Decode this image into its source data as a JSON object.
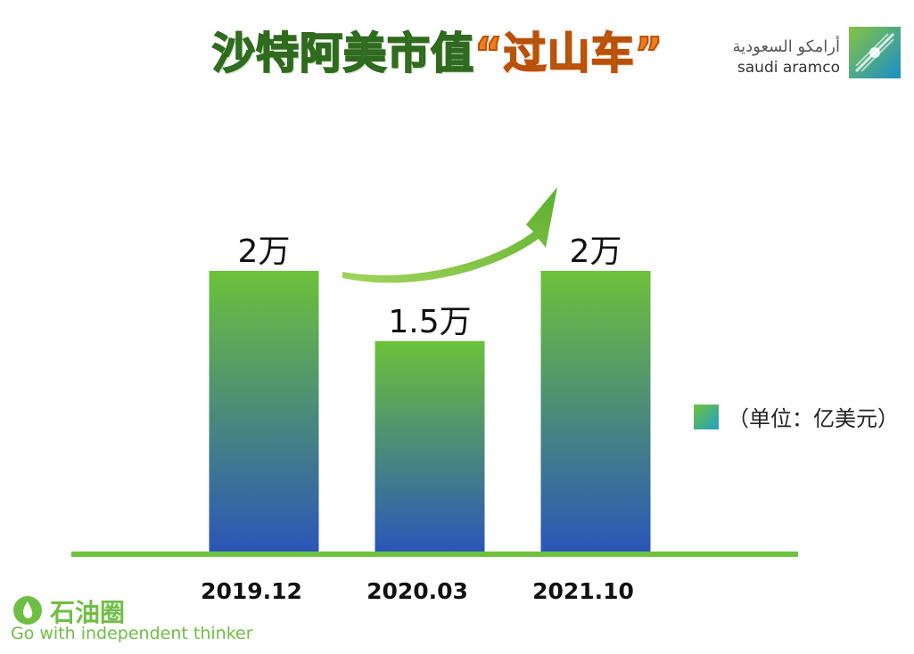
{
  "title": {
    "part1": "沙特阿美市值",
    "part2": "“过山车”"
  },
  "logo": {
    "arabic": "أرامكو السعودية",
    "english": "saudi aramco"
  },
  "legend": {
    "label": "（单位：亿美元）"
  },
  "watermark": {
    "name": "石油圈",
    "tagline": "Go with independent thinker"
  },
  "colors": {
    "bar_top": "#6cc23a",
    "bar_bottom": "#2a56b8",
    "axis": "#6ec23f",
    "arrow": "#7dc23a"
  },
  "chart_data": {
    "type": "bar",
    "title": "沙特阿美市值“过山车”",
    "categories": [
      "2019.12",
      "2020.03",
      "2021.10"
    ],
    "values": [
      20000,
      15000,
      20000
    ],
    "value_labels": [
      "2万",
      "1.5万",
      "2万"
    ],
    "unit": "（单位：亿美元）",
    "ylim": [
      0,
      23000
    ],
    "grid": false,
    "legend_position": "right"
  }
}
